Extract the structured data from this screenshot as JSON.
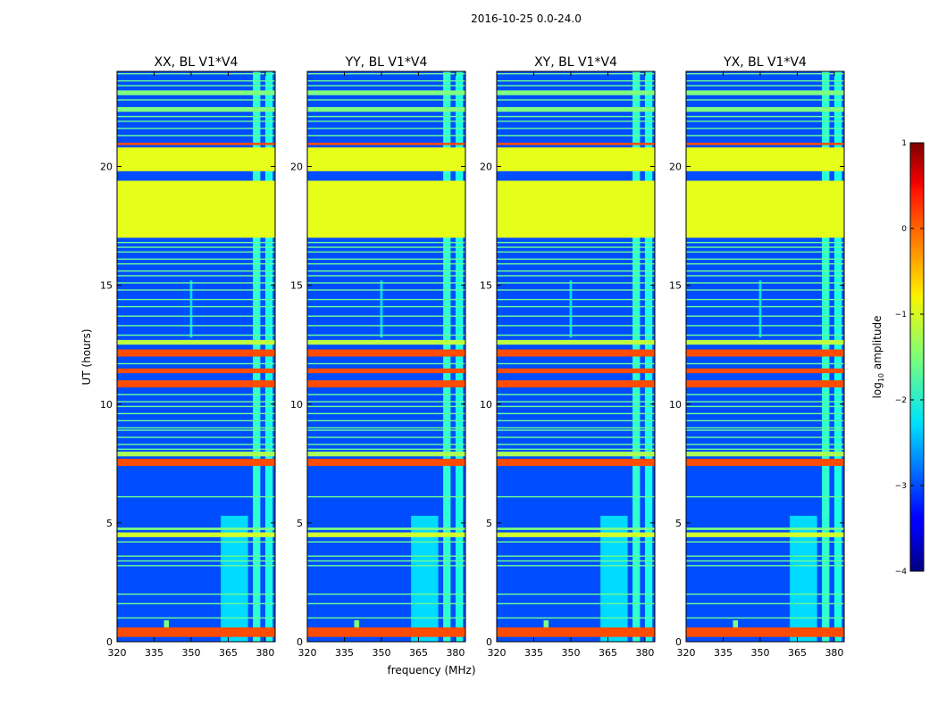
{
  "figure": {
    "suptitle": "2016-10-25 0.0-24.0"
  },
  "chart_data": {
    "type": "heatmap",
    "title": "2016-10-25 0.0-24.0",
    "xlabel": "frequency (MHz)",
    "ylabel": "UT (hours)",
    "xlim": [
      320,
      384
    ],
    "ylim": [
      0,
      24
    ],
    "x_ticks": [
      320,
      335,
      350,
      365,
      380
    ],
    "y_ticks": [
      0,
      5,
      10,
      15,
      20
    ],
    "colorbar": {
      "label_prefix": "log",
      "label_sub": "10",
      "label_suffix": " amplitude",
      "range": [
        -4,
        1
      ],
      "ticks": [
        1,
        0,
        -1,
        -2,
        -3,
        -4
      ],
      "tick_labels": [
        "1",
        "0",
        "−1",
        "−2",
        "−3",
        "−4"
      ],
      "colormap": "jet"
    },
    "panels": [
      {
        "title": "XX, BL V1*V4"
      },
      {
        "title": "YY, BL V1*V4"
      },
      {
        "title": "XY, BL V1*V4"
      },
      {
        "title": "YX, BL V1*V4"
      }
    ],
    "background_level": -3.0,
    "full_band_segments": [
      {
        "t0": 0.2,
        "t1": 0.6,
        "level": 0.0
      },
      {
        "t0": 4.4,
        "t1": 4.6,
        "level": -1.1
      },
      {
        "t0": 4.7,
        "t1": 4.8,
        "level": -1.5
      },
      {
        "t0": 7.4,
        "t1": 7.7,
        "level": 0.0
      },
      {
        "t0": 7.8,
        "t1": 8.0,
        "level": -1.3
      },
      {
        "t0": 10.7,
        "t1": 11.0,
        "level": 0.0
      },
      {
        "t0": 11.3,
        "t1": 11.5,
        "level": 0.0
      },
      {
        "t0": 12.0,
        "t1": 12.3,
        "level": 0.0
      },
      {
        "t0": 12.5,
        "t1": 12.7,
        "level": -1.2
      },
      {
        "t0": 17.0,
        "t1": 19.4,
        "level": -1.0
      },
      {
        "t0": 19.8,
        "t1": 20.8,
        "level": -1.0
      },
      {
        "t0": 20.9,
        "t1": 21.0,
        "level": 0.0
      },
      {
        "t0": 22.3,
        "t1": 22.5,
        "level": -1.5
      },
      {
        "t0": 23.0,
        "t1": 23.2,
        "level": -1.5
      }
    ],
    "thin_lines": [
      1.0,
      1.6,
      2.0,
      3.2,
      3.4,
      3.6,
      4.2,
      6.1,
      8.1,
      8.3,
      8.6,
      8.9,
      9.0,
      9.3,
      9.6,
      9.9,
      10.1,
      10.4,
      11.7,
      12.9,
      13.3,
      13.7,
      14.1,
      14.4,
      14.8,
      15.1,
      15.4,
      15.6,
      15.9,
      16.1,
      16.4,
      16.6,
      16.8,
      21.3,
      21.6,
      21.9,
      22.1,
      22.8,
      23.4,
      23.6,
      23.9
    ],
    "freq_features": [
      {
        "f0": 375.0,
        "f1": 378.0,
        "t0": 0.0,
        "t1": 24.0,
        "level": -1.9
      },
      {
        "f0": 380.0,
        "f1": 383.0,
        "t0": 0.0,
        "t1": 24.0,
        "level": -2.0
      },
      {
        "f0": 362.0,
        "f1": 373.0,
        "t0": 0.0,
        "t1": 5.3,
        "level": -2.3
      },
      {
        "f0": 349.5,
        "f1": 350.5,
        "t0": 12.8,
        "t1": 15.2,
        "level": -2.3
      },
      {
        "f0": 339.0,
        "f1": 341.0,
        "t0": 0.6,
        "t1": 0.9,
        "level": -1.5
      }
    ]
  }
}
